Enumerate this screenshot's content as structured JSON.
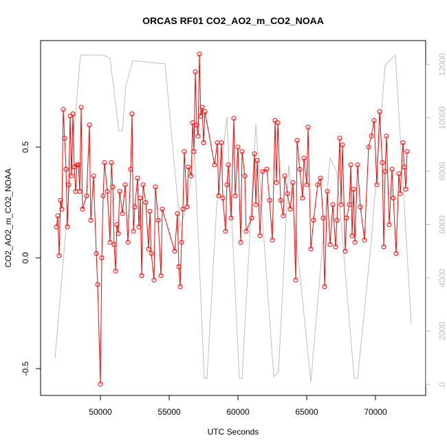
{
  "chart_data": {
    "type": "line",
    "title": "ORCAS RF01 CO2_AO2_m_CO2_NOAA",
    "x_label": "UTC Seconds",
    "y_label": "CO2_AO2_m_CO2_NOAA",
    "xlim": [
      45650,
      73650
    ],
    "xticks": [
      50000,
      55000,
      60000,
      65000,
      70000
    ],
    "ylim": [
      -0.621,
      0.981
    ],
    "yticks": [
      -0.5,
      {
        "value": 0,
        "label": "0.0"
      },
      0.5
    ],
    "y2lim": [
      -413,
      12903
    ],
    "y2ticks": [
      0,
      2000,
      4000,
      6000,
      8000,
      10000,
      12000
    ],
    "series": [
      {
        "color": "#ff0000",
        "markers": true,
        "x": [
          46800,
          46900,
          47000,
          47100,
          47200,
          47300,
          47400,
          47500,
          47600,
          47700,
          47800,
          47900,
          48000,
          48100,
          48200,
          48300,
          48400,
          48500,
          48600,
          48700,
          49000,
          49200,
          49300,
          49500,
          49700,
          49800,
          50000,
          50100,
          50200,
          50300,
          50500,
          50700,
          50800,
          50900,
          51000,
          51100,
          51200,
          51300,
          51400,
          51600,
          51800,
          52000,
          52200,
          52300,
          52400,
          52500,
          52700,
          52800,
          52900,
          53000,
          53100,
          53300,
          53500,
          53600,
          53700,
          53900,
          54000,
          54200,
          54400,
          54500,
          55400,
          55600,
          55700,
          55800,
          55900,
          56000,
          56100,
          56300,
          56400,
          56600,
          56700,
          56800,
          56900,
          57000,
          57100,
          57200,
          57300,
          57400,
          57500,
          57600,
          58300,
          58500,
          58600,
          58800,
          58900,
          59100,
          59200,
          59300,
          59500,
          59700,
          59800,
          60000,
          60200,
          60300,
          60500,
          60600,
          61000,
          61200,
          61300,
          61400,
          61600,
          61800,
          62100,
          62300,
          62500,
          62700,
          62800,
          62900,
          63100,
          63300,
          63400,
          63600,
          63800,
          64000,
          64200,
          64300,
          64500,
          64700,
          64800,
          65000,
          65100,
          65300,
          65500,
          65800,
          66000,
          66200,
          66300,
          66500,
          66700,
          66900,
          67100,
          67200,
          67400,
          67500,
          67600,
          67800,
          67900,
          68100,
          68200,
          68300,
          68400,
          68500,
          68700,
          68900,
          69200,
          69500,
          69700,
          69900,
          70100,
          70300,
          70500,
          70600,
          70700,
          70800,
          71000,
          71200,
          71300,
          71500,
          71700,
          71800,
          72000,
          72100,
          72200,
          72300
        ],
        "values": [
          0.14,
          0.19,
          0.01,
          0.26,
          0.22,
          0.67,
          0.54,
          0.4,
          0.14,
          0.33,
          0.64,
          0.37,
          0.65,
          0.41,
          0.3,
          0.42,
          0.42,
          0.3,
          0.68,
          0.22,
          0.28,
          0.6,
          0.17,
          0.37,
          0.02,
          -0.12,
          -0.57,
          0.0,
          0.28,
          0.43,
          0.3,
          0.07,
          0.43,
          0.32,
          0.06,
          -0.06,
          0.15,
          0.11,
          0.3,
          0.2,
          0.33,
          0.07,
          0.4,
          0.65,
          0.12,
          0.23,
          0.36,
          0.14,
          0.27,
          -0.08,
          0.33,
          0.25,
          0.04,
          0.21,
          0.02,
          -0.1,
          0.32,
          0.17,
          -0.08,
          0.22,
          0.03,
          0.2,
          -0.04,
          -0.13,
          0.07,
          0.22,
          0.48,
          0.23,
          0.41,
          0.37,
          0.61,
          0.48,
          0.84,
          0.6,
          0.55,
          0.92,
          0.64,
          0.68,
          0.52,
          0.66,
          0.42,
          0.52,
          0.28,
          0.52,
          0.27,
          0.12,
          0.33,
          0.42,
          0.18,
          0.63,
          0.28,
          0.5,
          0.07,
          0.48,
          0.37,
          0.12,
          0.18,
          0.47,
          0.24,
          0.44,
          0.1,
          0.39,
          0.4,
          0.26,
          0.08,
          0.62,
          0.34,
          0.61,
          0.26,
          0.19,
          0.37,
          0.29,
          0.22,
          0.34,
          -0.1,
          0.53,
          0.4,
          0.27,
          0.45,
          0.33,
          0.59,
          0.04,
          0.17,
          0.33,
          0.36,
          0.18,
          -0.13,
          0.3,
          0.06,
          0.24,
          0.05,
          0.17,
          0.54,
          0.24,
          0.51,
          0.03,
          0.18,
          0.24,
          0.42,
          0.1,
          0.31,
          0.07,
          0.42,
          0.23,
          0.08,
          0.5,
          0.55,
          0.62,
          0.33,
          0.66,
          0.43,
          0.05,
          0.39,
          0.55,
          0.15,
          0.4,
          0.27,
          0.02,
          0.38,
          0.29,
          0.52,
          0.41,
          0.31,
          0.48
        ]
      },
      {
        "color": "#bebebe",
        "axis": "y2",
        "x": [
          46700,
          48550,
          50200,
          50700,
          51350,
          51600,
          51850,
          52350,
          54700,
          55800,
          56300,
          56850,
          57550,
          57750,
          58450,
          59200,
          60100,
          60300,
          61300,
          62600,
          62950,
          63700,
          65300,
          66700,
          67200,
          68450,
          68700,
          69700,
          70700,
          71450,
          72600
        ],
        "values": [
          980,
          12360,
          12360,
          12230,
          9520,
          9520,
          11200,
          12150,
          12030,
          5900,
          6680,
          8750,
          230,
          230,
          6680,
          10040,
          230,
          230,
          9780,
          280,
          490,
          8230,
          100,
          8490,
          7970,
          230,
          230,
          5400,
          11970,
          12360,
          2300
        ]
      }
    ]
  }
}
